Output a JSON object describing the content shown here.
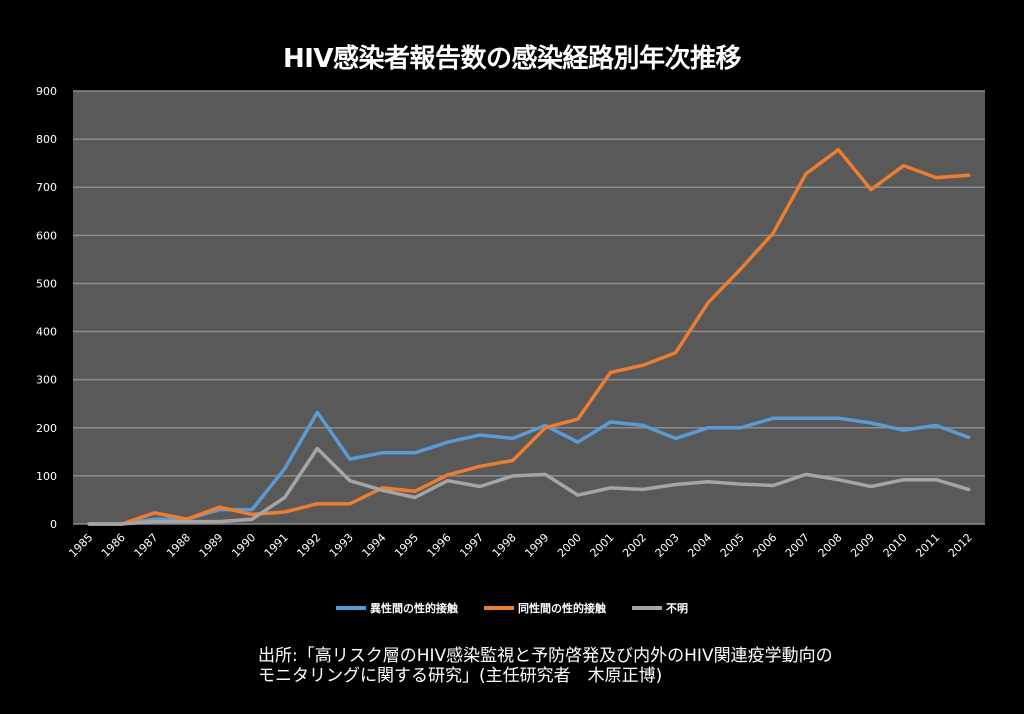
{
  "title": "HIV感染者報告数の感染経路別年次推移",
  "chart_data": {
    "type": "line",
    "title": "HIV感染者報告数の感染経路別年次推移",
    "xlabel": "",
    "ylabel": "",
    "ylim": [
      0,
      900
    ],
    "yticks": [
      0,
      100,
      200,
      300,
      400,
      500,
      600,
      700,
      800,
      900
    ],
    "grid": true,
    "legend_position": "bottom",
    "categories": [
      "1985",
      "1986",
      "1987",
      "1988",
      "1989",
      "1990",
      "1991",
      "1992",
      "1993",
      "1994",
      "1995",
      "1996",
      "1997",
      "1998",
      "1999",
      "2000",
      "2001",
      "2002",
      "2003",
      "2004",
      "2005",
      "2006",
      "2007",
      "2008",
      "2009",
      "2010",
      "2011",
      "2012"
    ],
    "series": [
      {
        "name": "異性間の性的接触",
        "color": "#5b9bd5",
        "values": [
          0,
          0,
          10,
          10,
          30,
          30,
          115,
          232,
          135,
          148,
          148,
          170,
          185,
          178,
          205,
          170,
          212,
          205,
          178,
          200,
          200,
          220,
          220,
          220,
          210,
          195,
          205,
          180
        ]
      },
      {
        "name": "同性間の性的接触",
        "color": "#ed7d31",
        "values": [
          0,
          0,
          23,
          10,
          35,
          20,
          25,
          42,
          42,
          75,
          68,
          102,
          120,
          132,
          200,
          218,
          315,
          330,
          356,
          460,
          530,
          605,
          728,
          778,
          695,
          745,
          720,
          725
        ]
      },
      {
        "name": "不明",
        "color": "#a5a5a5",
        "values": [
          0,
          0,
          5,
          5,
          5,
          10,
          55,
          157,
          90,
          70,
          55,
          90,
          78,
          100,
          103,
          60,
          75,
          72,
          82,
          88,
          83,
          80,
          103,
          92,
          78,
          92,
          92,
          72
        ]
      }
    ]
  },
  "source": {
    "line1": "出所:「高リスク層のHIV感染監視と予防啓発及び内外のHIV関連疫学動向の",
    "line2": "モニタリングに関する研究」(主任研究者　木原正博)"
  }
}
